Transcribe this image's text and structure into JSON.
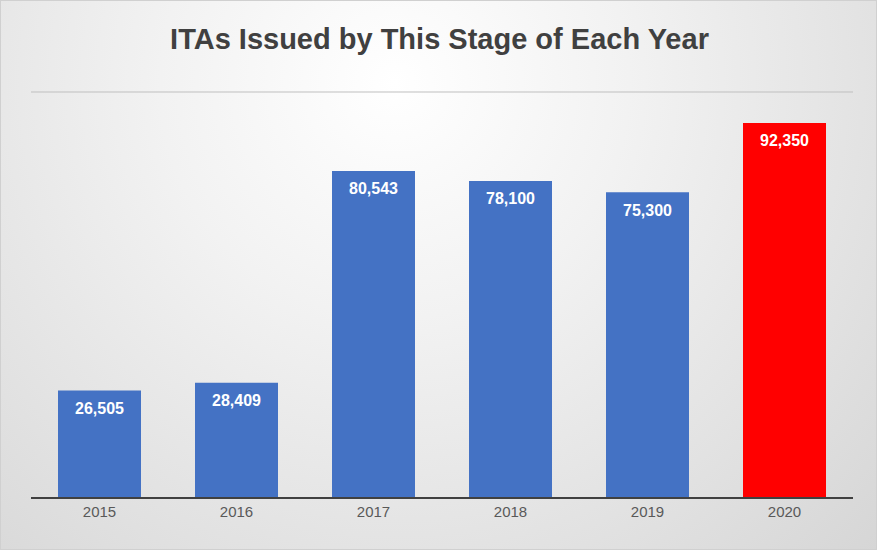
{
  "chart_data": {
    "type": "bar",
    "title": "ITAs Issued by This Stage of Each Year",
    "categories": [
      "2015",
      "2016",
      "2017",
      "2018",
      "2019",
      "2020"
    ],
    "values": [
      26505,
      28409,
      80543,
      78100,
      75300,
      92350
    ],
    "value_labels": [
      "26,505",
      "28,409",
      "80,543",
      "78,100",
      "75,300",
      "92,350"
    ],
    "colors": [
      "#4472c4",
      "#4472c4",
      "#4472c4",
      "#4472c4",
      "#4472c4",
      "#ff0000"
    ],
    "ylim": [
      0,
      100000
    ],
    "yticks": [
      0,
      10000,
      20000,
      30000,
      40000,
      50000,
      60000,
      70000,
      80000,
      90000,
      100000
    ],
    "grid": true,
    "data_labels": true,
    "tick_labels": "x"
  }
}
